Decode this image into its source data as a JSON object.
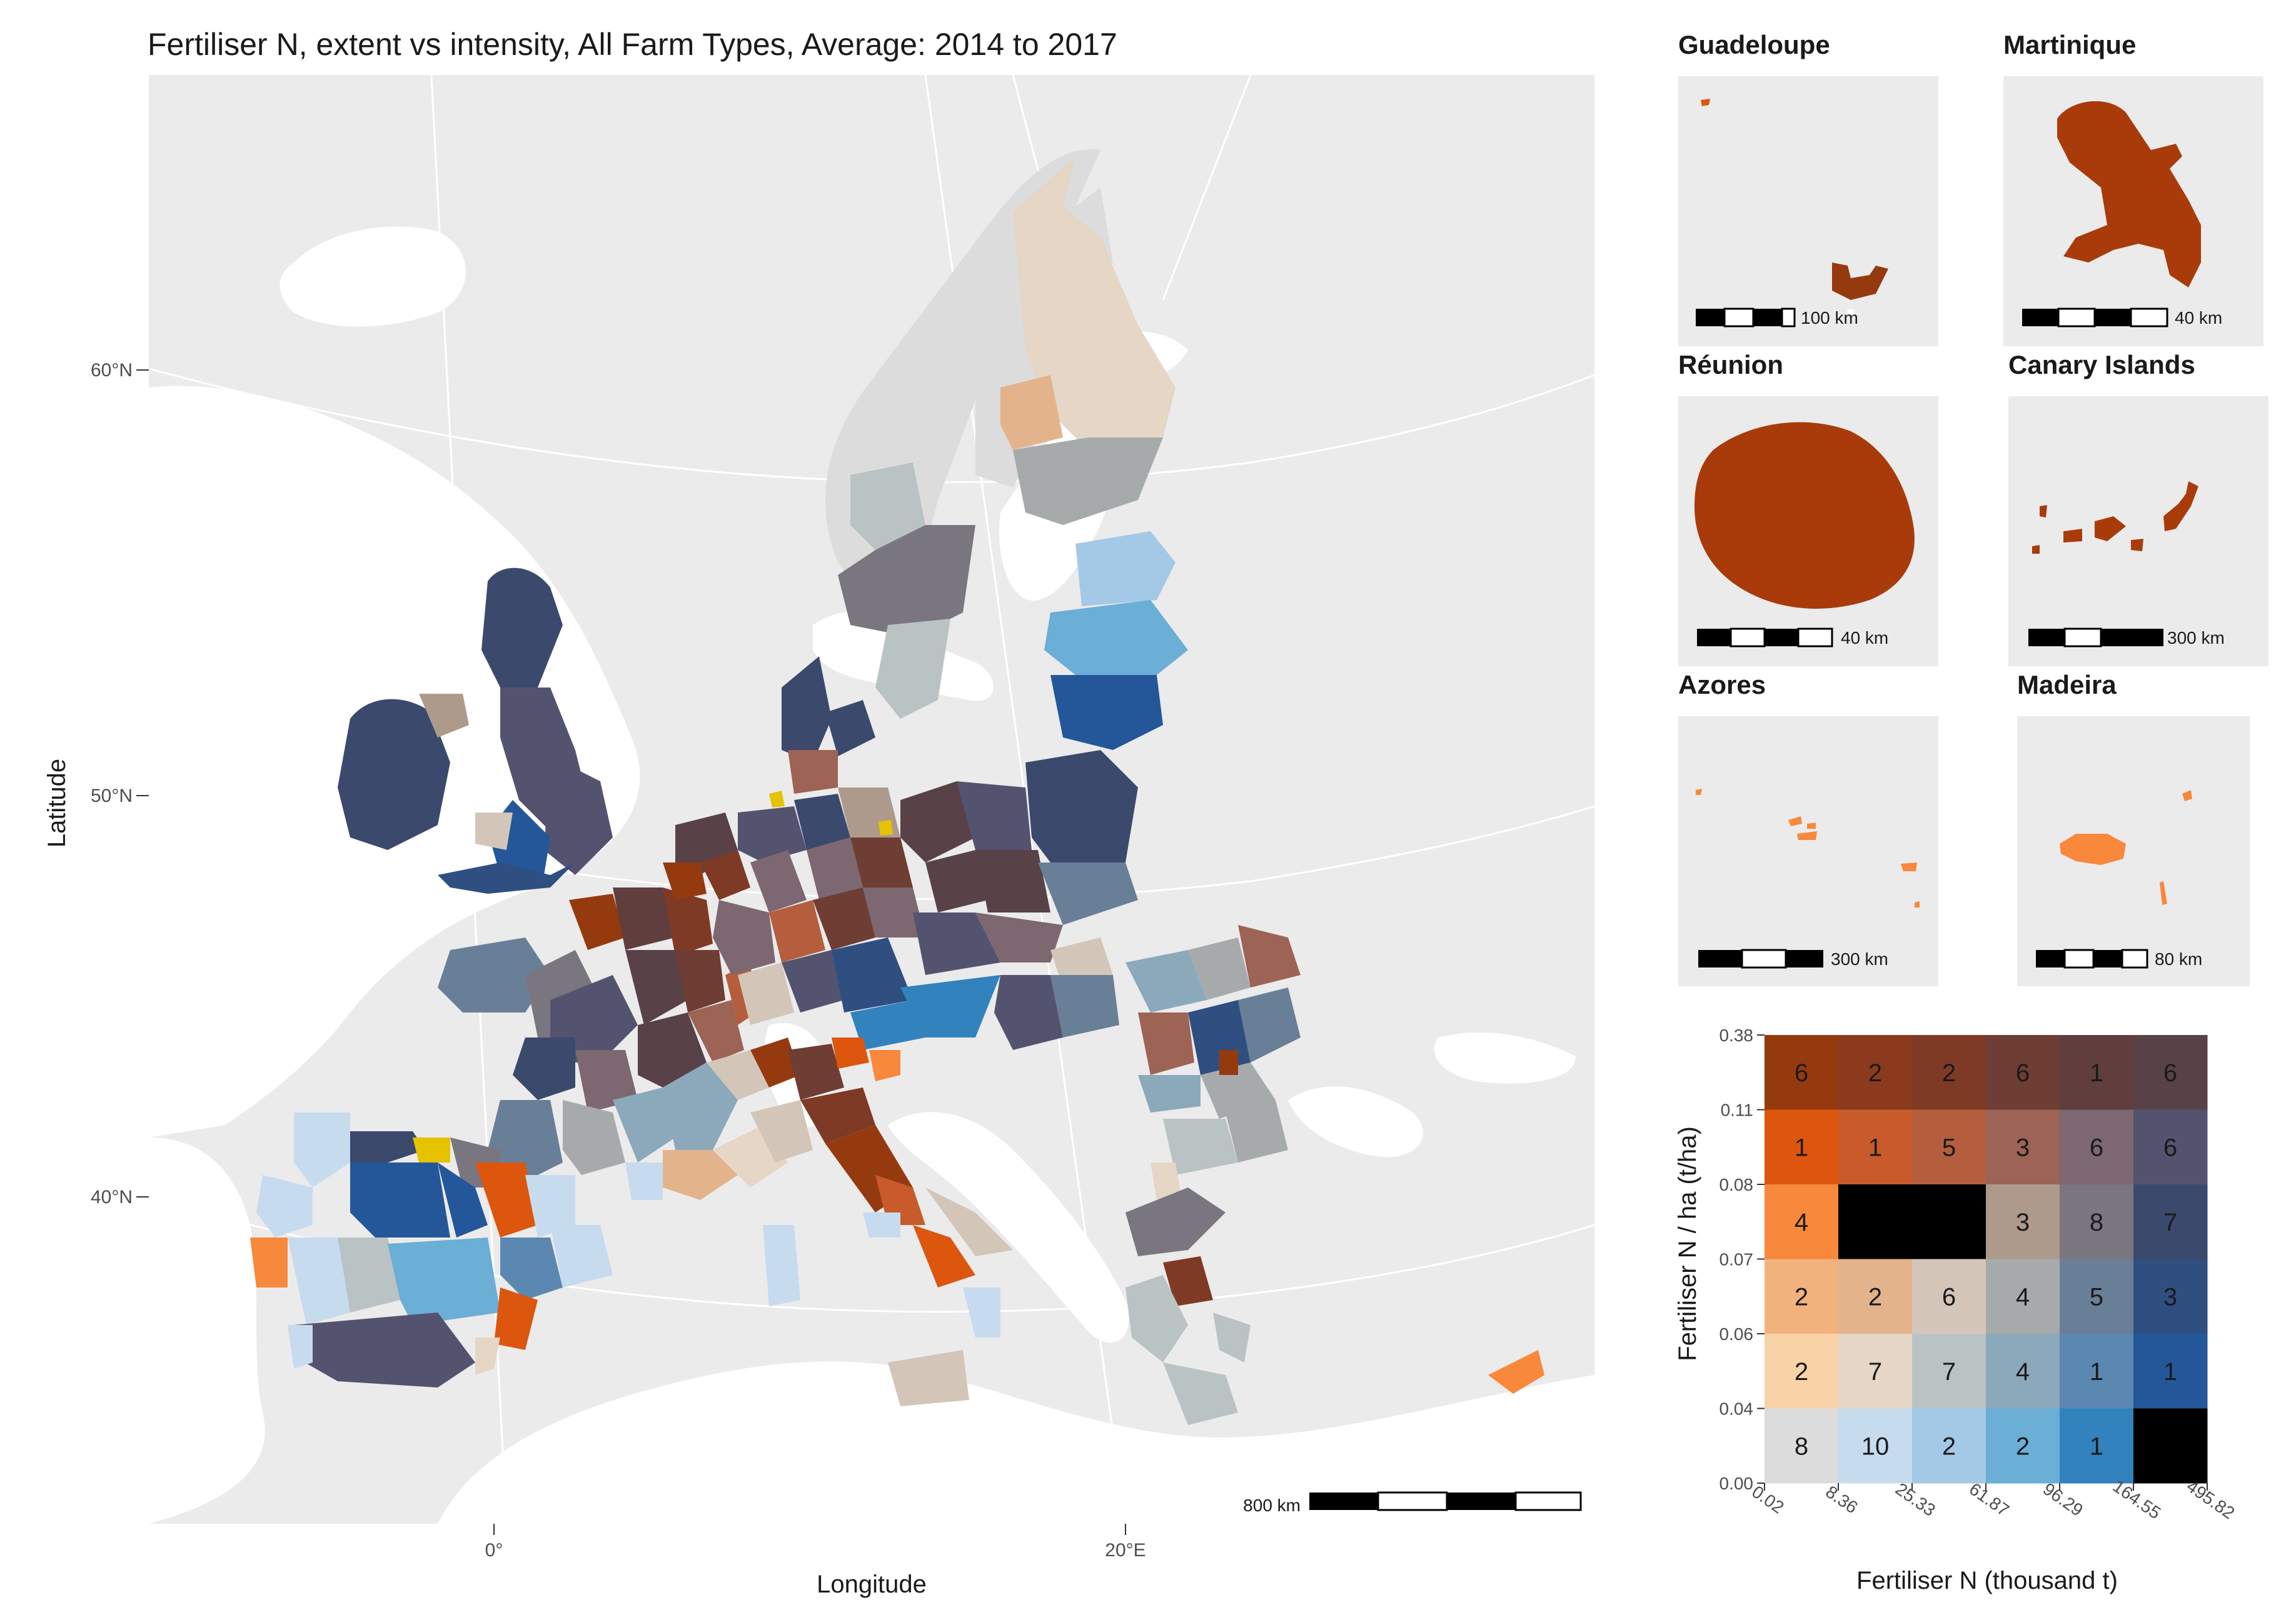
{
  "title": "Fertiliser N, extent vs intensity, All Farm Types, Average: 2014 to 2017",
  "main_map": {
    "xlabel": "Longitude",
    "ylabel": "Latitude",
    "lat_labels": [
      "60°N",
      "50°N",
      "40°N"
    ],
    "lon_labels": [
      "0°",
      "20°E"
    ],
    "scalebar_label": "800 km"
  },
  "insets": [
    {
      "name": "Guadeloupe",
      "scale_label": "100 km"
    },
    {
      "name": "Martinique",
      "scale_label": "40 km"
    },
    {
      "name": "Réunion",
      "scale_label": "40 km"
    },
    {
      "name": "Canary Islands",
      "scale_label": "300 km"
    },
    {
      "name": "Azores",
      "scale_label": "300 km"
    },
    {
      "name": "Madeira",
      "scale_label": "80 km"
    }
  ],
  "colors": {
    "background": "#ffffff",
    "land_outside": "#ebebeb",
    "grid": "#ffffff",
    "highlight_yellow": "#e6c200",
    "missing": "#000000"
  },
  "chart_data": {
    "type": "heatmap",
    "title": "",
    "xlabel": "Fertiliser N (thousand t)",
    "ylabel": "Fertiliser N / ha (t/ha)",
    "x_breaks": [
      "0.02",
      "8.36",
      "25.33",
      "61.87",
      "96.29",
      "164.55",
      "495.82"
    ],
    "y_breaks": [
      "0.00",
      "0.04",
      "0.06",
      "0.07",
      "0.08",
      "0.11",
      "0.38"
    ],
    "rows_top_to_bottom": [
      {
        "counts": [
          "6",
          "2",
          "2",
          "6",
          "1",
          "6"
        ],
        "colors": [
          "#953a0f",
          "#8b3a1e",
          "#7f3a26",
          "#6e3d33",
          "#603e3e",
          "#584248"
        ]
      },
      {
        "counts": [
          "1",
          "1",
          "5",
          "3",
          "6",
          "6"
        ],
        "colors": [
          "#dd560e",
          "#c95a2c",
          "#b45e3e",
          "#9d6354",
          "#7d6770",
          "#54536f"
        ]
      },
      {
        "counts": [
          "4",
          "",
          "",
          "3",
          "8",
          "7"
        ],
        "colors": [
          "#f8883b",
          "#000000",
          "#000000",
          "#ae9a8b",
          "#7a7680",
          "#3b496d"
        ]
      },
      {
        "counts": [
          "2",
          "2",
          "6",
          "4",
          "5",
          "3"
        ],
        "colors": [
          "#f2b27e",
          "#e3b48c",
          "#d3c6b8",
          "#a7aaab",
          "#697f97",
          "#2f4f80"
        ]
      },
      {
        "counts": [
          "2",
          "7",
          "7",
          "4",
          "1",
          "1"
        ],
        "colors": [
          "#fad2a8",
          "#e5d6c5",
          "#b9c3c4",
          "#8ba9ba",
          "#5b88b0",
          "#24579a"
        ]
      },
      {
        "counts": [
          "8",
          "10",
          "2",
          "2",
          "1",
          ""
        ],
        "colors": [
          "#dcdcdc",
          "#c7dbef",
          "#a3c9e6",
          "#6baed6",
          "#3182bd",
          "#000000"
        ]
      }
    ]
  }
}
